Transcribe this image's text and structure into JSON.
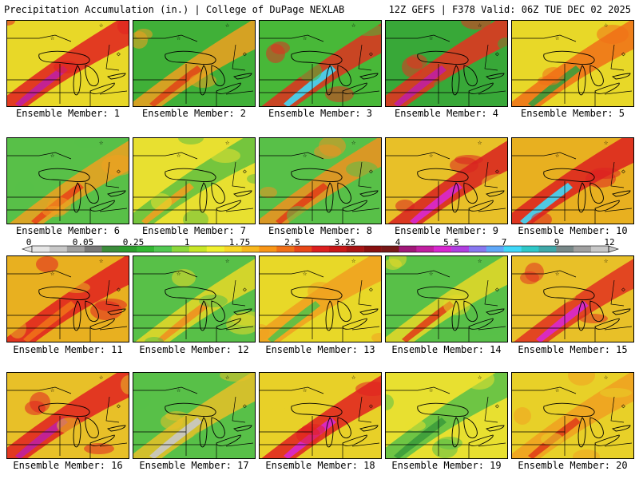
{
  "header": {
    "title": "Precipitation Accumulation (in.) | College of DuPage NEXLAB",
    "run_info": "12Z GEFS | F378 Valid: 06Z TUE DEC 02 2025"
  },
  "colorbar": {
    "labels": [
      "0",
      "0.05",
      "0.25",
      "1",
      "1.75",
      "2.5",
      "3.25",
      "4",
      "5.5",
      "7",
      "9",
      "12"
    ],
    "colors": [
      "#e6e6e6",
      "#c8c8c8",
      "#a0a0a0",
      "#787878",
      "#3c8c3c",
      "#2e9e2e",
      "#34b834",
      "#52c852",
      "#8cd83c",
      "#c8e628",
      "#f0f030",
      "#f8d828",
      "#f8b81e",
      "#f89618",
      "#f07018",
      "#e84818",
      "#dc2020",
      "#c81818",
      "#a81414",
      "#881010",
      "#781818",
      "#a01878",
      "#c020a0",
      "#d828d0",
      "#b040e0",
      "#8878f0",
      "#60a8f8",
      "#40d8f8",
      "#30c8c8",
      "#40a8a8",
      "#788888",
      "#a0a0a0",
      "#c8c8c8"
    ]
  },
  "panels": [
    {
      "label": "Ensemble Member: 1",
      "base": "#e8d828",
      "band": "#e02020",
      "core": "#c020a0"
    },
    {
      "label": "Ensemble Member: 2",
      "base": "#40b038",
      "band": "#f0a020",
      "core": "#e04818"
    },
    {
      "label": "Ensemble Member: 3",
      "base": "#48b838",
      "band": "#e03020",
      "core": "#40d8f8"
    },
    {
      "label": "Ensemble Member: 4",
      "base": "#38a838",
      "band": "#e83020",
      "core": "#c020a0"
    },
    {
      "label": "Ensemble Member: 5",
      "base": "#e8d828",
      "band": "#f07018",
      "core": "#3c9c3c"
    },
    {
      "label": "Ensemble Member: 6",
      "base": "#58c048",
      "band": "#f0a020",
      "core": "#e84818"
    },
    {
      "label": "Ensemble Member: 7",
      "base": "#e8e030",
      "band": "#60c040",
      "core": "#f0a020"
    },
    {
      "label": "Ensemble Member: 8",
      "base": "#58c048",
      "band": "#f09020",
      "core": "#e04018"
    },
    {
      "label": "Ensemble Member: 9",
      "base": "#e8c028",
      "band": "#d82020",
      "core": "#d828d0"
    },
    {
      "label": "Ensemble Member: 10",
      "base": "#e8b020",
      "band": "#dc2020",
      "core": "#40d8f8"
    },
    {
      "label": "Ensemble Member: 11",
      "base": "#e8b020",
      "band": "#e02020",
      "core": "#f07018"
    },
    {
      "label": "Ensemble Member: 12",
      "base": "#58c048",
      "band": "#e8d828",
      "core": "#f09020"
    },
    {
      "label": "Ensemble Member: 13",
      "base": "#e8d828",
      "band": "#f0a020",
      "core": "#58c048"
    },
    {
      "label": "Ensemble Member: 14",
      "base": "#58c048",
      "band": "#e8d828",
      "core": "#e04018"
    },
    {
      "label": "Ensemble Member: 15",
      "base": "#e8c028",
      "band": "#e03020",
      "core": "#d828d0"
    },
    {
      "label": "Ensemble Member: 16",
      "base": "#e8c028",
      "band": "#e02020",
      "core": "#c020a0"
    },
    {
      "label": "Ensemble Member: 17",
      "base": "#58c048",
      "band": "#e8c028",
      "core": "#c8c8c8"
    },
    {
      "label": "Ensemble Member: 18",
      "base": "#e8d028",
      "band": "#e02020",
      "core": "#d828d0"
    },
    {
      "label": "Ensemble Member: 19",
      "base": "#e8e030",
      "band": "#58c048",
      "core": "#3c9c3c"
    },
    {
      "label": "Ensemble Member: 20",
      "base": "#e8d028",
      "band": "#f0a020",
      "core": "#e04018"
    }
  ]
}
